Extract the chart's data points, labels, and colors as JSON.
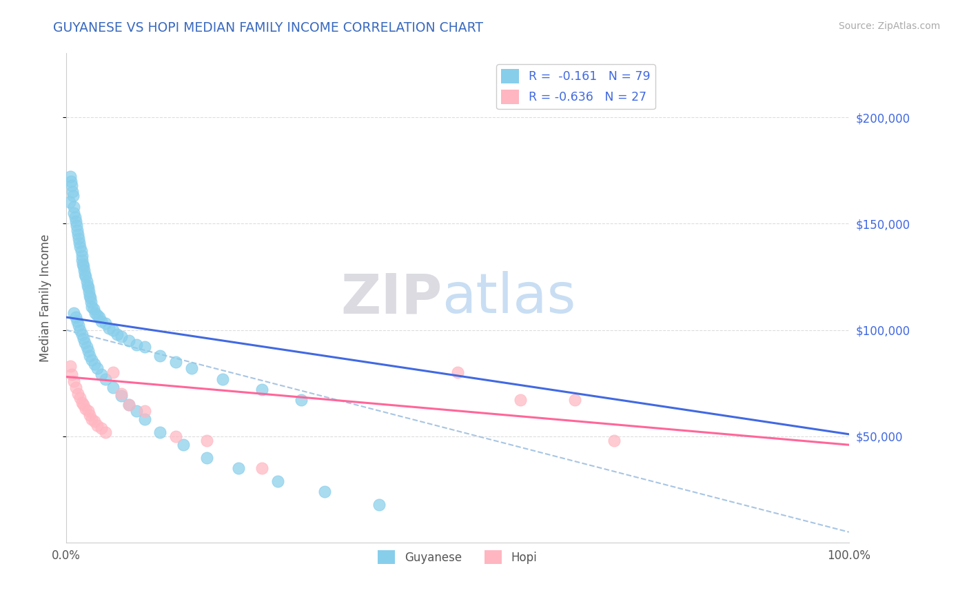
{
  "title": "GUYANESE VS HOPI MEDIAN FAMILY INCOME CORRELATION CHART",
  "title_color": "#3a6abf",
  "source_text": "Source: ZipAtlas.com",
  "ylabel": "Median Family Income",
  "xlim": [
    0.0,
    100.0
  ],
  "ylim": [
    0,
    230000
  ],
  "background_color": "#ffffff",
  "grid_color": "#cccccc",
  "watermark_zip": "ZIP",
  "watermark_atlas": "atlas",
  "legend_r1": "R =  -0.161",
  "legend_n1": "N = 79",
  "legend_r2": "R = -0.636",
  "legend_n2": "N = 27",
  "guyanese_color": "#87CEEB",
  "hopi_color": "#FFB6C1",
  "guyanese_line_color": "#4169E1",
  "hopi_line_color": "#FF6699",
  "dashed_line_color": "#99bbdd",
  "guyanese_x": [
    0.4,
    0.5,
    0.6,
    0.7,
    0.8,
    0.9,
    1.0,
    1.0,
    1.1,
    1.2,
    1.3,
    1.4,
    1.5,
    1.6,
    1.7,
    1.8,
    1.9,
    2.0,
    2.0,
    2.1,
    2.2,
    2.3,
    2.4,
    2.5,
    2.6,
    2.7,
    2.8,
    2.9,
    3.0,
    3.1,
    3.2,
    3.3,
    3.5,
    3.7,
    4.0,
    4.2,
    4.5,
    5.0,
    5.5,
    6.0,
    6.5,
    7.0,
    8.0,
    9.0,
    10.0,
    12.0,
    14.0,
    16.0,
    20.0,
    25.0,
    30.0,
    1.0,
    1.2,
    1.4,
    1.6,
    1.8,
    2.0,
    2.2,
    2.4,
    2.6,
    2.8,
    3.0,
    3.3,
    3.6,
    4.0,
    4.5,
    5.0,
    6.0,
    7.0,
    8.0,
    9.0,
    10.0,
    12.0,
    15.0,
    18.0,
    22.0,
    27.0,
    33.0,
    40.0
  ],
  "guyanese_y": [
    160000,
    172000,
    170000,
    168000,
    165000,
    163000,
    158000,
    155000,
    153000,
    151000,
    149000,
    147000,
    145000,
    143000,
    141000,
    139000,
    137000,
    135000,
    133000,
    131000,
    130000,
    128000,
    126000,
    125000,
    123000,
    121000,
    120000,
    118000,
    116000,
    115000,
    113000,
    111000,
    110000,
    108000,
    107000,
    106000,
    104000,
    103000,
    101000,
    100000,
    98000,
    97000,
    95000,
    93000,
    92000,
    88000,
    85000,
    82000,
    77000,
    72000,
    67000,
    108000,
    106000,
    104000,
    102000,
    100000,
    98000,
    96000,
    94000,
    92000,
    90000,
    88000,
    86000,
    84000,
    82000,
    79000,
    77000,
    73000,
    69000,
    65000,
    62000,
    58000,
    52000,
    46000,
    40000,
    35000,
    29000,
    24000,
    18000
  ],
  "hopi_x": [
    0.5,
    0.7,
    1.0,
    1.2,
    1.5,
    1.8,
    2.0,
    2.2,
    2.5,
    2.8,
    3.0,
    3.3,
    3.6,
    4.0,
    4.5,
    5.0,
    6.0,
    7.0,
    8.0,
    10.0,
    14.0,
    18.0,
    25.0,
    50.0,
    58.0,
    65.0,
    70.0
  ],
  "hopi_y": [
    83000,
    79000,
    76000,
    73000,
    70000,
    68000,
    66000,
    65000,
    63000,
    62000,
    60000,
    58000,
    57000,
    55000,
    54000,
    52000,
    80000,
    70000,
    65000,
    62000,
    50000,
    48000,
    35000,
    80000,
    67000,
    67000,
    48000
  ],
  "guyanese_label": "Guyanese",
  "hopi_label": "Hopi"
}
